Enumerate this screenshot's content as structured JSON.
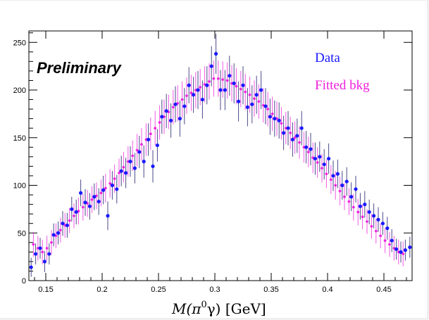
{
  "chart_data": {
    "type": "scatter",
    "xlabel": "M(π⁰γ) [GeV]",
    "xlabel_parts": {
      "main": "M(π",
      "sup": "0",
      "end": "γ) [GeV]"
    },
    "ylabel": "",
    "xlim": [
      0.135,
      0.475
    ],
    "ylim": [
      0,
      262
    ],
    "xticks": [
      0.15,
      0.2,
      0.25,
      0.3,
      0.35,
      0.4,
      0.45
    ],
    "xtick_labels": [
      "0.15",
      "0.2",
      "0.25",
      "0.3",
      "0.35",
      "0.4",
      "0.45"
    ],
    "yticks": [
      0,
      50,
      100,
      150,
      200,
      250
    ],
    "ytick_labels": [
      "0",
      "50",
      "100",
      "150",
      "200",
      "250"
    ],
    "annotation": "Preliminary",
    "legend_position": "top-right",
    "series": [
      {
        "name": "Data",
        "color": "#1a1aff",
        "marker": "circle-with-errorbars",
        "x": [
          0.137,
          0.141,
          0.145,
          0.149,
          0.153,
          0.157,
          0.161,
          0.165,
          0.169,
          0.173,
          0.177,
          0.181,
          0.185,
          0.189,
          0.193,
          0.197,
          0.201,
          0.205,
          0.209,
          0.213,
          0.217,
          0.221,
          0.225,
          0.229,
          0.233,
          0.237,
          0.241,
          0.245,
          0.249,
          0.253,
          0.257,
          0.261,
          0.265,
          0.269,
          0.273,
          0.277,
          0.281,
          0.285,
          0.289,
          0.293,
          0.297,
          0.301,
          0.305,
          0.309,
          0.313,
          0.317,
          0.321,
          0.325,
          0.329,
          0.333,
          0.337,
          0.341,
          0.345,
          0.349,
          0.353,
          0.357,
          0.361,
          0.365,
          0.369,
          0.373,
          0.377,
          0.381,
          0.385,
          0.389,
          0.393,
          0.397,
          0.401,
          0.405,
          0.409,
          0.413,
          0.417,
          0.421,
          0.425,
          0.429,
          0.433,
          0.437,
          0.441,
          0.445,
          0.449,
          0.453,
          0.457,
          0.461,
          0.465,
          0.469,
          0.473
        ],
        "y": [
          14,
          28,
          34,
          20,
          28,
          48,
          50,
          60,
          58,
          75,
          72,
          92,
          82,
          78,
          88,
          83,
          95,
          68,
          100,
          96,
          115,
          113,
          125,
          118,
          135,
          125,
          148,
          120,
          142,
          172,
          178,
          168,
          185,
          170,
          183,
          205,
          195,
          200,
          190,
          205,
          225,
          238,
          200,
          200,
          215,
          207,
          188,
          205,
          182,
          185,
          195,
          200,
          183,
          172,
          170,
          168,
          155,
          160,
          148,
          152,
          160,
          140,
          138,
          128,
          130,
          122,
          128,
          110,
          112,
          100,
          104,
          88,
          96,
          78,
          80,
          72,
          68,
          64,
          60,
          55,
          42,
          33,
          30,
          32,
          35
        ],
        "err": [
          10,
          11,
          11,
          11,
          11,
          12,
          12,
          13,
          13,
          13,
          13,
          14,
          14,
          14,
          14,
          14,
          15,
          15,
          15,
          15,
          16,
          16,
          16,
          16,
          17,
          17,
          17,
          17,
          17,
          18,
          18,
          18,
          19,
          19,
          19,
          19,
          19,
          20,
          20,
          20,
          21,
          21,
          21,
          21,
          21,
          21,
          21,
          20,
          20,
          20,
          20,
          20,
          19,
          19,
          19,
          19,
          18,
          18,
          18,
          18,
          18,
          17,
          17,
          17,
          16,
          16,
          16,
          16,
          15,
          15,
          15,
          15,
          14,
          14,
          14,
          13,
          13,
          13,
          12,
          12,
          12,
          11,
          11,
          11,
          11
        ]
      },
      {
        "name": "Fitted bkg",
        "color": "#ee22dd",
        "marker": "point-with-errorbars",
        "x": [
          0.139,
          0.143,
          0.147,
          0.151,
          0.155,
          0.159,
          0.163,
          0.167,
          0.171,
          0.175,
          0.179,
          0.183,
          0.187,
          0.191,
          0.195,
          0.199,
          0.203,
          0.207,
          0.211,
          0.215,
          0.219,
          0.223,
          0.227,
          0.231,
          0.235,
          0.239,
          0.243,
          0.247,
          0.251,
          0.255,
          0.259,
          0.263,
          0.267,
          0.271,
          0.275,
          0.279,
          0.283,
          0.287,
          0.291,
          0.295,
          0.299,
          0.303,
          0.307,
          0.311,
          0.315,
          0.319,
          0.323,
          0.327,
          0.331,
          0.335,
          0.339,
          0.343,
          0.347,
          0.351,
          0.355,
          0.359,
          0.363,
          0.367,
          0.371,
          0.375,
          0.379,
          0.383,
          0.387,
          0.391,
          0.395,
          0.399,
          0.403,
          0.407,
          0.411,
          0.415,
          0.419,
          0.423,
          0.427,
          0.431,
          0.435,
          0.439,
          0.443,
          0.447,
          0.451,
          0.455,
          0.459,
          0.463,
          0.467
        ],
        "y": [
          38,
          34,
          30,
          34,
          40,
          47,
          53,
          58,
          63,
          68,
          73,
          77,
          81,
          85,
          89,
          92,
          97,
          102,
          107,
          113,
          119,
          125,
          131,
          137,
          143,
          148,
          154,
          160,
          166,
          172,
          177,
          182,
          186,
          190,
          194,
          197,
          200,
          203,
          206,
          209,
          212,
          212,
          211,
          210,
          207,
          204,
          201,
          198,
          195,
          191,
          188,
          184,
          180,
          175,
          170,
          165,
          160,
          155,
          150,
          145,
          140,
          135,
          129,
          124,
          118,
          112,
          106,
          100,
          94,
          88,
          83,
          77,
          72,
          67,
          62,
          57,
          52,
          47,
          42,
          38,
          34,
          30,
          28
        ],
        "err": [
          13,
          13,
          13,
          13,
          13,
          13,
          13,
          13,
          13,
          13,
          14,
          14,
          14,
          14,
          14,
          14,
          15,
          15,
          15,
          15,
          16,
          16,
          16,
          17,
          17,
          17,
          17,
          18,
          18,
          18,
          18,
          18,
          19,
          19,
          19,
          19,
          19,
          19,
          19,
          19,
          19,
          19,
          19,
          19,
          19,
          19,
          19,
          19,
          19,
          19,
          18,
          18,
          18,
          18,
          18,
          17,
          17,
          17,
          17,
          17,
          16,
          16,
          16,
          16,
          15,
          15,
          15,
          15,
          15,
          14,
          14,
          14,
          14,
          13,
          13,
          13,
          13,
          13,
          13,
          13,
          13,
          13,
          13
        ]
      }
    ]
  }
}
